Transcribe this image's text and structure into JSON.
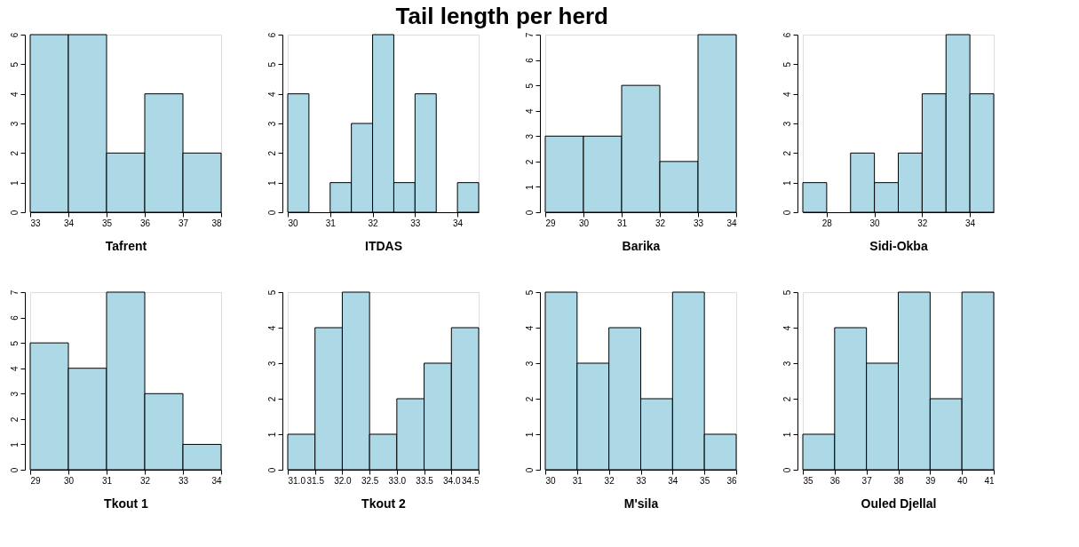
{
  "chart_data": [
    {
      "type": "histogram",
      "xlabel": "Tafrent",
      "bins": [
        33,
        34,
        35,
        36,
        37,
        38
      ],
      "values": [
        6,
        6,
        2,
        4,
        2
      ],
      "color": "#add8e6",
      "xlim": [
        33,
        38
      ],
      "xticks": [
        33,
        34,
        35,
        36,
        37,
        38
      ],
      "ylim": [
        0,
        6
      ],
      "yticks": [
        0,
        1,
        2,
        3,
        4,
        5,
        6
      ],
      "grid": false
    },
    {
      "type": "histogram",
      "xlabel": "ITDAS",
      "bins": [
        30,
        30.5,
        31,
        31.5,
        32,
        32.5,
        33,
        33.5,
        34,
        34.5
      ],
      "values": [
        4,
        0,
        1,
        3,
        6,
        1,
        4,
        0,
        1
      ],
      "color": "#add8e6",
      "xlim": [
        30,
        34.5
      ],
      "xticks": [
        30,
        31,
        32,
        33,
        34
      ],
      "ylim": [
        0,
        6
      ],
      "yticks": [
        0,
        1,
        2,
        3,
        4,
        5,
        6
      ],
      "grid": false
    },
    {
      "type": "histogram",
      "title": "Tail length per herd",
      "xlabel": "Barika",
      "bins": [
        29,
        30,
        31,
        32,
        33,
        34
      ],
      "values": [
        3,
        3,
        5,
        2,
        7
      ],
      "color": "#add8e6",
      "xlim": [
        29,
        34
      ],
      "xticks": [
        29,
        30,
        31,
        32,
        33,
        34
      ],
      "ylim": [
        0,
        7
      ],
      "yticks": [
        0,
        1,
        2,
        3,
        4,
        5,
        6,
        7
      ],
      "grid": false
    },
    {
      "type": "histogram",
      "xlabel": "Sidi-Okba",
      "bins": [
        27,
        28,
        29,
        30,
        31,
        32,
        33,
        34,
        35
      ],
      "values": [
        1,
        0,
        2,
        1,
        2,
        4,
        6,
        4
      ],
      "color": "#add8e6",
      "xlim": [
        27,
        35
      ],
      "xticks": [
        28,
        30,
        32,
        34
      ],
      "ylim": [
        0,
        6
      ],
      "yticks": [
        0,
        1,
        2,
        3,
        4,
        5,
        6
      ],
      "grid": false
    },
    {
      "type": "histogram",
      "xlabel": "Tkout 1",
      "bins": [
        29,
        30,
        31,
        32,
        33,
        34
      ],
      "values": [
        5,
        4,
        7,
        3,
        1
      ],
      "color": "#add8e6",
      "xlim": [
        29,
        34
      ],
      "xticks": [
        29,
        30,
        31,
        32,
        33,
        34
      ],
      "ylim": [
        0,
        7
      ],
      "yticks": [
        0,
        1,
        2,
        3,
        4,
        5,
        6,
        7
      ],
      "grid": false
    },
    {
      "type": "histogram",
      "xlabel": "Tkout 2",
      "bins": [
        31,
        31.5,
        32,
        32.5,
        33,
        33.5,
        34,
        34.5
      ],
      "values": [
        1,
        4,
        5,
        1,
        2,
        3,
        4
      ],
      "color": "#add8e6",
      "xlim": [
        31,
        34.5
      ],
      "xticks": [
        {
          "value": 31,
          "label": "31.0"
        },
        31.5,
        {
          "value": 32,
          "label": "32.0"
        },
        32.5,
        {
          "value": 33,
          "label": "33.0"
        },
        33.5,
        {
          "value": 34,
          "label": "34.0"
        },
        34.5
      ],
      "ylim": [
        0,
        5
      ],
      "yticks": [
        0,
        1,
        2,
        3,
        4,
        5
      ],
      "grid": false
    },
    {
      "type": "histogram",
      "xlabel": "M'sila",
      "bins": [
        30,
        31,
        32,
        33,
        34,
        35,
        36
      ],
      "values": [
        5,
        3,
        4,
        2,
        5,
        1
      ],
      "color": "#add8e6",
      "xlim": [
        30,
        36
      ],
      "xticks": [
        30,
        31,
        32,
        33,
        34,
        35,
        36
      ],
      "ylim": [
        0,
        5
      ],
      "yticks": [
        0,
        1,
        2,
        3,
        4,
        5
      ],
      "grid": false
    },
    {
      "type": "histogram",
      "xlabel": "Ouled Djellal",
      "bins": [
        35,
        36,
        37,
        38,
        39,
        40,
        41
      ],
      "values": [
        1,
        4,
        3,
        5,
        2,
        5
      ],
      "color": "#add8e6",
      "xlim": [
        35,
        41
      ],
      "xticks": [
        35,
        36,
        37,
        38,
        39,
        40,
        41
      ],
      "ylim": [
        0,
        5
      ],
      "yticks": [
        0,
        1,
        2,
        3,
        4,
        5
      ],
      "grid": false
    }
  ]
}
